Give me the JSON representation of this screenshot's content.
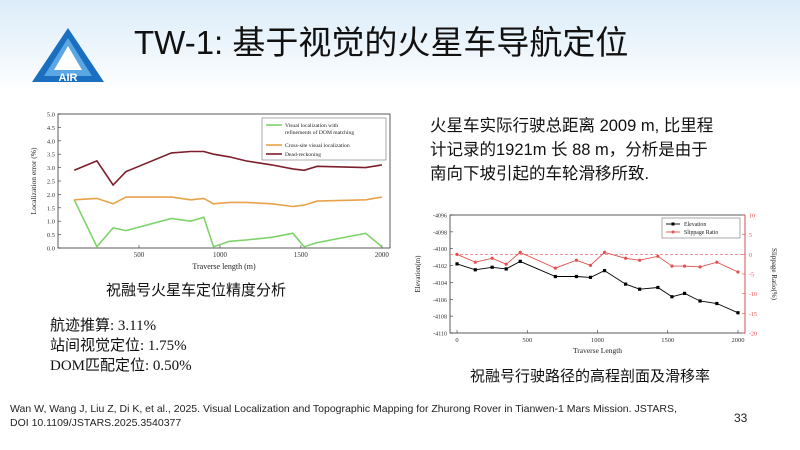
{
  "logo": {
    "text": "AIR",
    "icon": "air-triangle-logo",
    "color": "#1a6fc1"
  },
  "title": "TW-1: 基于视觉的火星车导航定位",
  "chart_data": [
    {
      "type": "line",
      "xlabel": "Traverse length (m)",
      "ylabel": "Localization error (%)",
      "xlim": [
        0,
        2050
      ],
      "ylim": [
        0.0,
        5.0
      ],
      "xticks": [
        500,
        1000,
        1500,
        2000
      ],
      "yticks": [
        "0.0",
        "0.5",
        "1.0",
        "1.5",
        "2.0",
        "2.5",
        "3.0",
        "3.5",
        "4.0",
        "4.5",
        "5.0"
      ],
      "legend_position": "top-right",
      "series": [
        {
          "name": "Visual localization with refinements of DOM matching",
          "color": "#7ed36a",
          "x": [
            100,
            240,
            340,
            420,
            700,
            820,
            900,
            960,
            1060,
            1160,
            1320,
            1450,
            1520,
            1600,
            1900,
            2000
          ],
          "y": [
            1.8,
            0.05,
            0.75,
            0.65,
            1.1,
            1.0,
            1.15,
            0.05,
            0.25,
            0.3,
            0.4,
            0.55,
            0.05,
            0.2,
            0.55,
            0.05
          ]
        },
        {
          "name": "Cross-site visual localization",
          "color": "#e8a24a",
          "x": [
            100,
            240,
            340,
            420,
            700,
            820,
            900,
            960,
            1060,
            1160,
            1320,
            1450,
            1520,
            1600,
            1900,
            2000
          ],
          "y": [
            1.8,
            1.85,
            1.65,
            1.9,
            1.9,
            1.8,
            1.85,
            1.65,
            1.7,
            1.7,
            1.65,
            1.55,
            1.6,
            1.75,
            1.8,
            1.9
          ]
        },
        {
          "name": "Dead-reckoning",
          "color": "#7b1f2a",
          "x": [
            100,
            240,
            340,
            420,
            700,
            820,
            900,
            960,
            1060,
            1160,
            1320,
            1450,
            1520,
            1600,
            1900,
            2000
          ],
          "y": [
            2.9,
            3.25,
            2.35,
            2.85,
            3.55,
            3.6,
            3.6,
            3.5,
            3.4,
            3.25,
            3.1,
            2.95,
            2.9,
            3.05,
            3.0,
            3.1
          ]
        }
      ]
    },
    {
      "type": "line",
      "xlabel": "Traverse Length",
      "ylabel": "Elevation(m)",
      "y2label": "Slippage Ratio(%)",
      "xlim": [
        -50,
        2050
      ],
      "ylim": [
        -4110,
        -4096
      ],
      "y2lim": [
        -20,
        10
      ],
      "xticks": [
        0,
        500,
        1000,
        1500,
        2000
      ],
      "yticks": [
        "-4096",
        "-4098",
        "-4100",
        "-4102",
        "-4104",
        "-4106",
        "-4108",
        "-4110"
      ],
      "y2ticks": [
        "10",
        "5",
        "0",
        "-5",
        "-10",
        "-15",
        "-20"
      ],
      "legend_position": "top-right",
      "series": [
        {
          "name": "Elevation",
          "color": "#000000",
          "axis": "left",
          "x": [
            0,
            130,
            250,
            350,
            450,
            700,
            850,
            950,
            1050,
            1200,
            1300,
            1430,
            1530,
            1620,
            1730,
            1850,
            2000
          ],
          "y": [
            -4101.8,
            -4102.5,
            -4102.2,
            -4102.4,
            -4101.5,
            -4103.3,
            -4103.3,
            -4103.4,
            -4102.6,
            -4104.2,
            -4104.8,
            -4104.6,
            -4105.7,
            -4105.3,
            -4106.2,
            -4106.5,
            -4107.6
          ]
        },
        {
          "name": "Slippage Ratio",
          "color": "#e35050",
          "axis": "right",
          "x": [
            0,
            130,
            250,
            350,
            450,
            700,
            850,
            950,
            1050,
            1200,
            1300,
            1430,
            1530,
            1620,
            1730,
            1850,
            2000
          ],
          "y": [
            0,
            -2,
            -1,
            -2.5,
            0.5,
            -3.5,
            -1.5,
            -2.8,
            0.5,
            -1,
            -1.5,
            -0.5,
            -3,
            -3,
            -3.2,
            -2,
            -4.5
          ]
        }
      ]
    }
  ],
  "captions": {
    "chart1": "祝融号火星车定位精度分析",
    "chart2": "祝融号行驶路径的高程剖面及滑移率"
  },
  "stats": [
    "航迹推算: 3.11%",
    "站间视觉定位: 1.75%",
    "DOM匹配定位: 0.50%"
  ],
  "paragraph": [
    "火星车实际行驶总距离 2009 m, 比里程",
    "计记录的1921m 长 88 m，分析是由于",
    "南向下坡引起的车轮滑移所致."
  ],
  "citation": [
    "Wan W, Wang J, Liu Z, Di K, et al., 2025. Visual Localization and Topographic Mapping for Zhurong Rover in Tianwen-1 Mars Mission. JSTARS,",
    "DOI 10.1109/JSTARS.2025.3540377"
  ],
  "page_number": "33"
}
